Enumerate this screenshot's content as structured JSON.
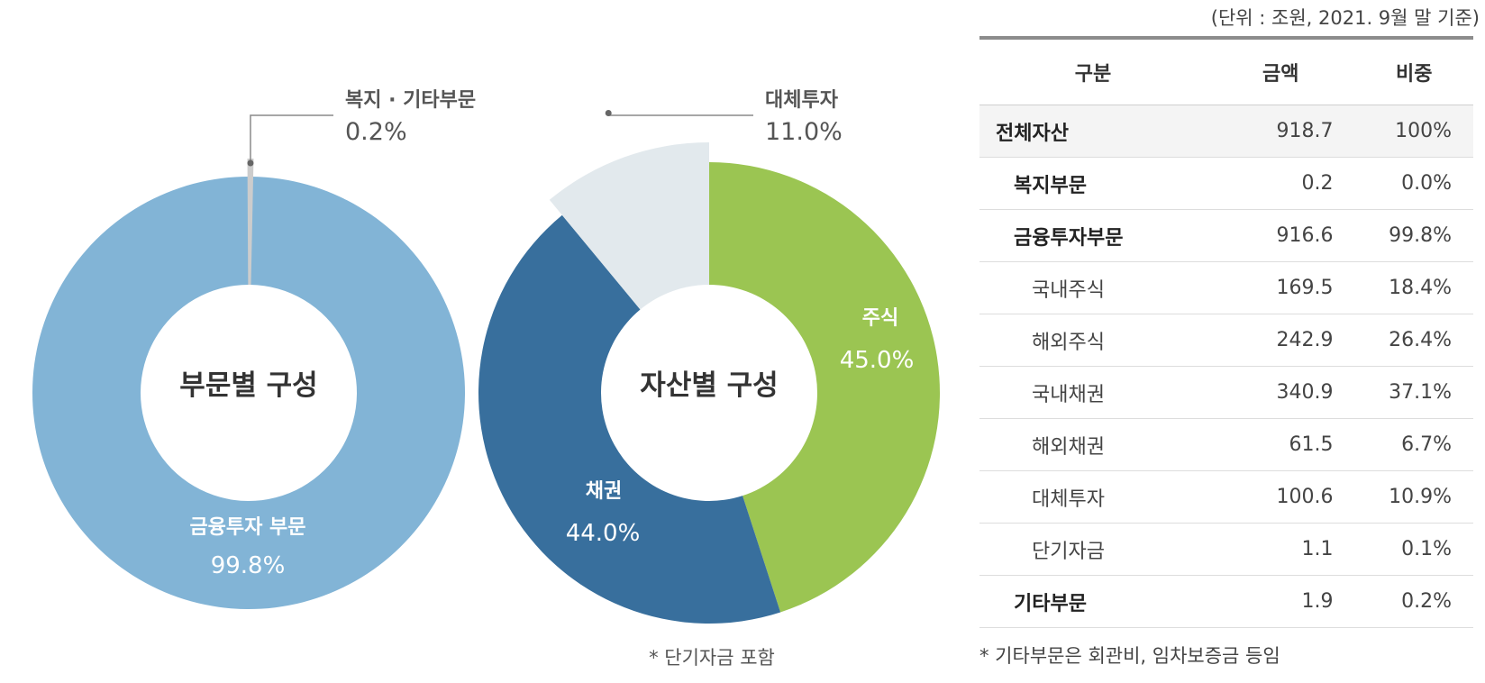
{
  "chart_data": [
    {
      "type": "pie",
      "center_label": "부문별 구성",
      "slices": [
        {
          "label": "금융투자 부문",
          "value": 99.8,
          "value_label": "99.8%",
          "color": "#82b4d6"
        },
        {
          "label": "복지 · 기타부문",
          "value": 0.2,
          "value_label": "0.2%",
          "color": "#cccccc"
        }
      ]
    },
    {
      "type": "pie",
      "center_label": "자산별 구성",
      "footnote": "* 단기자금 포함",
      "slices": [
        {
          "label": "주식",
          "value": 45.0,
          "value_label": "45.0%",
          "color": "#9bc552"
        },
        {
          "label": "채권",
          "value": 44.0,
          "value_label": "44.0%",
          "color": "#386f9d"
        },
        {
          "label": "대체투자",
          "value": 11.0,
          "value_label": "11.0%",
          "color": "#e2e9ed"
        }
      ]
    },
    {
      "type": "table",
      "unit_note": "(단위 : 조원, 2021. 9월 말 기준)",
      "headers": [
        "구분",
        "금액",
        "비중"
      ],
      "rows": [
        {
          "name": "전체자산",
          "amount": "918.7",
          "share": "100%",
          "level": 0
        },
        {
          "name": "복지부문",
          "amount": "0.2",
          "share": "0.0%",
          "level": 1
        },
        {
          "name": "금융투자부문",
          "amount": "916.6",
          "share": "99.8%",
          "level": 1
        },
        {
          "name": "국내주식",
          "amount": "169.5",
          "share": "18.4%",
          "level": 2
        },
        {
          "name": "해외주식",
          "amount": "242.9",
          "share": "26.4%",
          "level": 2
        },
        {
          "name": "국내채권",
          "amount": "340.9",
          "share": "37.1%",
          "level": 2
        },
        {
          "name": "해외채권",
          "amount": "61.5",
          "share": "6.7%",
          "level": 2
        },
        {
          "name": "대체투자",
          "amount": "100.6",
          "share": "10.9%",
          "level": 2
        },
        {
          "name": "단기자금",
          "amount": "1.1",
          "share": "0.1%",
          "level": 2
        },
        {
          "name": "기타부문",
          "amount": "1.9",
          "share": "0.2%",
          "level": 1
        }
      ],
      "footnote": "* 기타부문은 회관비, 임차보증금 등임"
    }
  ]
}
